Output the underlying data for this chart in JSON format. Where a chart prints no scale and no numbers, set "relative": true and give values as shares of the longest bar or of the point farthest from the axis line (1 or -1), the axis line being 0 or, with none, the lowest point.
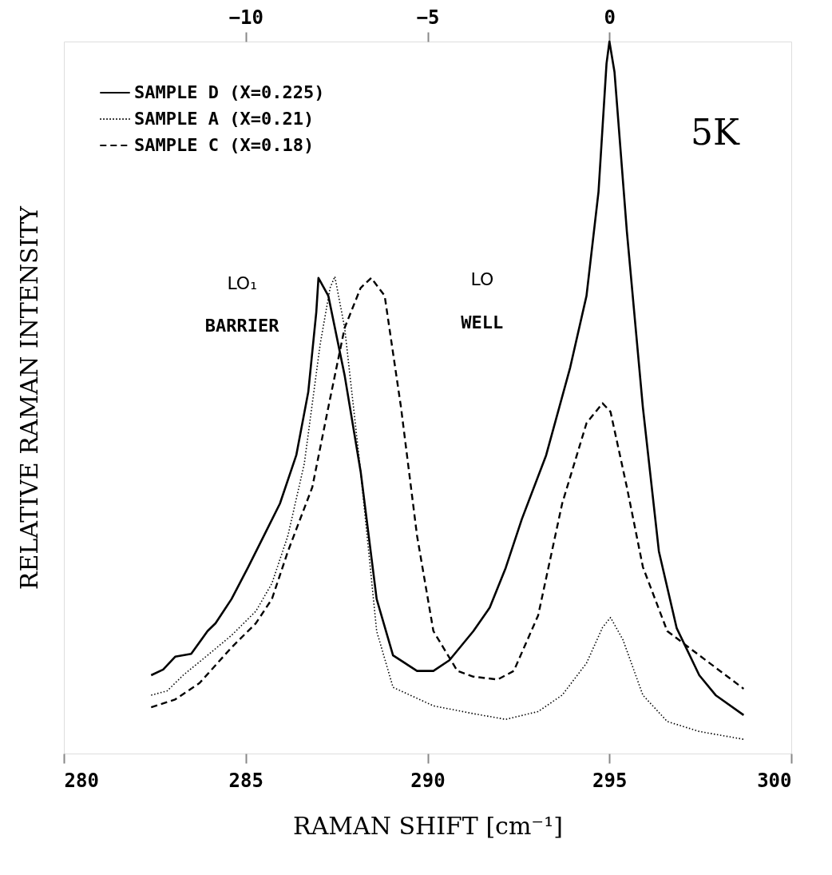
{
  "chart_data": {
    "type": "line",
    "relative": true,
    "xlabel": "RAMAN SHIFT [cm⁻¹]",
    "ylabel": "RELATIVE RAMAN INTENSITY",
    "xlim": [
      280,
      300
    ],
    "xticks": [
      280,
      285,
      290,
      295,
      300
    ],
    "x2lim": [
      -15,
      5
    ],
    "x2ticks": [
      -10,
      -5,
      0
    ],
    "grid": false,
    "legend": "top left",
    "marker": "none",
    "annotations": [
      "LO₁",
      "BARRIER",
      "LO",
      "WELL",
      "5K"
    ],
    "series": [
      {
        "name": "SAMPLE D  (X=0.225)",
        "color": "#000000",
        "line_style": "solid",
        "x": [
          282.4,
          282.73,
          283.06,
          283.5,
          283.95,
          284.17,
          284.61,
          285.06,
          285.5,
          285.94,
          286.39,
          286.72,
          286.94,
          287.0,
          287.27,
          287.72,
          288.16,
          288.6,
          289.05,
          289.71,
          290.16,
          290.6,
          291.26,
          291.71,
          292.15,
          292.59,
          293.26,
          293.92,
          294.37,
          294.7,
          294.92,
          295.0,
          295.14,
          295.48,
          295.92,
          296.36,
          296.85,
          297.47,
          297.92,
          298.69
        ],
        "values": [
          0.11,
          0.118,
          0.136,
          0.14,
          0.172,
          0.183,
          0.217,
          0.261,
          0.306,
          0.351,
          0.419,
          0.508,
          0.62,
          0.668,
          0.643,
          0.531,
          0.396,
          0.217,
          0.138,
          0.116,
          0.116,
          0.131,
          0.172,
          0.205,
          0.261,
          0.329,
          0.419,
          0.542,
          0.643,
          0.789,
          0.969,
          1.0,
          0.957,
          0.733,
          0.486,
          0.284,
          0.176,
          0.11,
          0.082,
          0.054
        ]
      },
      {
        "name": "SAMPLE A  (X=0.21)",
        "color": "#000000",
        "line_style": "dotted",
        "x": [
          282.4,
          282.84,
          283.28,
          283.95,
          284.61,
          285.28,
          285.72,
          286.16,
          286.61,
          287.05,
          287.32,
          287.45,
          287.72,
          288.16,
          288.6,
          289.05,
          290.16,
          291.26,
          292.15,
          293.04,
          293.7,
          294.37,
          294.81,
          295.03,
          295.37,
          295.92,
          296.59,
          297.47,
          298.69
        ],
        "values": [
          0.082,
          0.088,
          0.11,
          0.138,
          0.166,
          0.2,
          0.239,
          0.306,
          0.407,
          0.576,
          0.654,
          0.67,
          0.598,
          0.396,
          0.172,
          0.093,
          0.067,
          0.056,
          0.048,
          0.059,
          0.082,
          0.127,
          0.177,
          0.191,
          0.16,
          0.082,
          0.045,
          0.031,
          0.02
        ]
      },
      {
        "name": "SAMPLE C  (X=0.18)",
        "color": "#000000",
        "line_style": "dashed",
        "x": [
          282.4,
          283.06,
          283.73,
          284.61,
          285.28,
          285.72,
          286.16,
          286.83,
          287.27,
          287.72,
          288.16,
          288.45,
          288.82,
          289.27,
          289.71,
          290.16,
          290.82,
          291.26,
          291.93,
          292.37,
          293.04,
          293.7,
          294.37,
          294.81,
          295.03,
          295.48,
          295.92,
          296.59,
          297.47,
          298.69
        ],
        "values": [
          0.065,
          0.076,
          0.099,
          0.149,
          0.183,
          0.217,
          0.284,
          0.374,
          0.486,
          0.598,
          0.654,
          0.668,
          0.643,
          0.486,
          0.306,
          0.172,
          0.116,
          0.108,
          0.104,
          0.116,
          0.194,
          0.351,
          0.464,
          0.492,
          0.48,
          0.374,
          0.262,
          0.172,
          0.138,
          0.091
        ]
      }
    ]
  }
}
